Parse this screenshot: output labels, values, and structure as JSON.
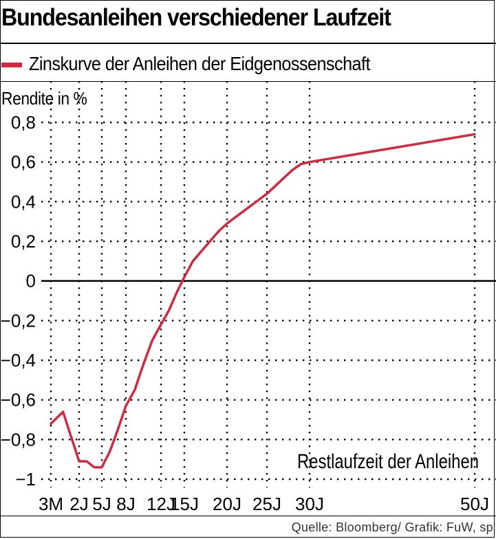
{
  "title": "Bundesanleihen verschiedener Laufzeit",
  "source": "Quelle: Bloomberg/ Grafik: FuW, sp",
  "chart_data": {
    "type": "line",
    "ylabel": "Rendite in %",
    "xlabel": "Restlaufzeit der Anleihen",
    "ylim": [
      -1,
      0.8
    ],
    "yticks": [
      0.8,
      0.6,
      0.4,
      0.2,
      0,
      -0.2,
      -0.4,
      -0.6,
      -0.8,
      -1
    ],
    "ytick_labels": [
      "0,8",
      "0,6",
      "0,4",
      "0,2",
      "0",
      "−0,2",
      "−0,4",
      "−0,6",
      "−0,8",
      "−1"
    ],
    "xticks": [
      0.25,
      2,
      5,
      8,
      12,
      15,
      20,
      25,
      30,
      50
    ],
    "xtick_labels": [
      "3M",
      "2J",
      "5J",
      "8J",
      "12J",
      "15J",
      "20J",
      "25J",
      "30J",
      "50J"
    ],
    "grid": true,
    "legend_position": "top-left",
    "series": [
      {
        "name": "Zinskurve der Anleihen der Eidgenossenschaft",
        "color": "#d3273e",
        "x": [
          0.25,
          1,
          2,
          3,
          4,
          5,
          6,
          7,
          8,
          9,
          10,
          11,
          12,
          13,
          14,
          15,
          16,
          17,
          18,
          19,
          20,
          21,
          22,
          23,
          24,
          25,
          26,
          27,
          28,
          29,
          30,
          50
        ],
        "y": [
          -0.72,
          -0.66,
          -0.91,
          -0.91,
          -0.94,
          -0.94,
          -0.86,
          -0.75,
          -0.63,
          -0.55,
          -0.42,
          -0.3,
          -0.22,
          -0.15,
          -0.06,
          0.02,
          0.1,
          0.15,
          0.2,
          0.25,
          0.29,
          0.32,
          0.35,
          0.38,
          0.41,
          0.44,
          0.48,
          0.52,
          0.56,
          0.59,
          0.6,
          0.74
        ]
      }
    ]
  }
}
